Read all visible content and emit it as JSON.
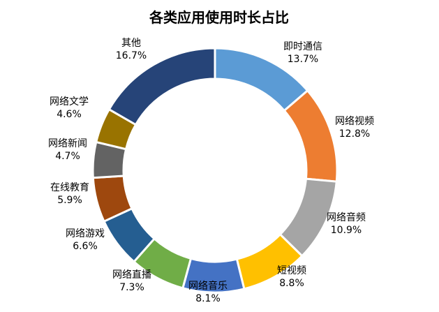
{
  "chart_data": {
    "type": "pie",
    "title": "各类应用使用时长占比",
    "series": [
      {
        "categories": [
          "即时通信",
          "网络视频",
          "网络音频",
          "短视频",
          "网络音乐",
          "网络直播",
          "网络游戏",
          "在线教育",
          "网络新闻",
          "网络文学",
          "其他"
        ],
        "values": [
          13.7,
          12.8,
          10.9,
          8.8,
          8.1,
          7.3,
          6.6,
          5.9,
          4.7,
          4.6,
          16.7
        ],
        "value_labels": [
          "13.7%",
          "12.8%",
          "10.9%",
          "8.8%",
          "8.1%",
          "7.3%",
          "6.6%",
          "5.9%",
          "4.7%",
          "4.6%",
          "16.7%"
        ],
        "colors": [
          "#5B9BD5",
          "#ED7D31",
          "#A5A5A5",
          "#FFC000",
          "#4472C4",
          "#70AD47",
          "#255E91",
          "#9E480E",
          "#636363",
          "#997300",
          "#264478"
        ]
      }
    ],
    "donut": true,
    "legend": "none"
  }
}
